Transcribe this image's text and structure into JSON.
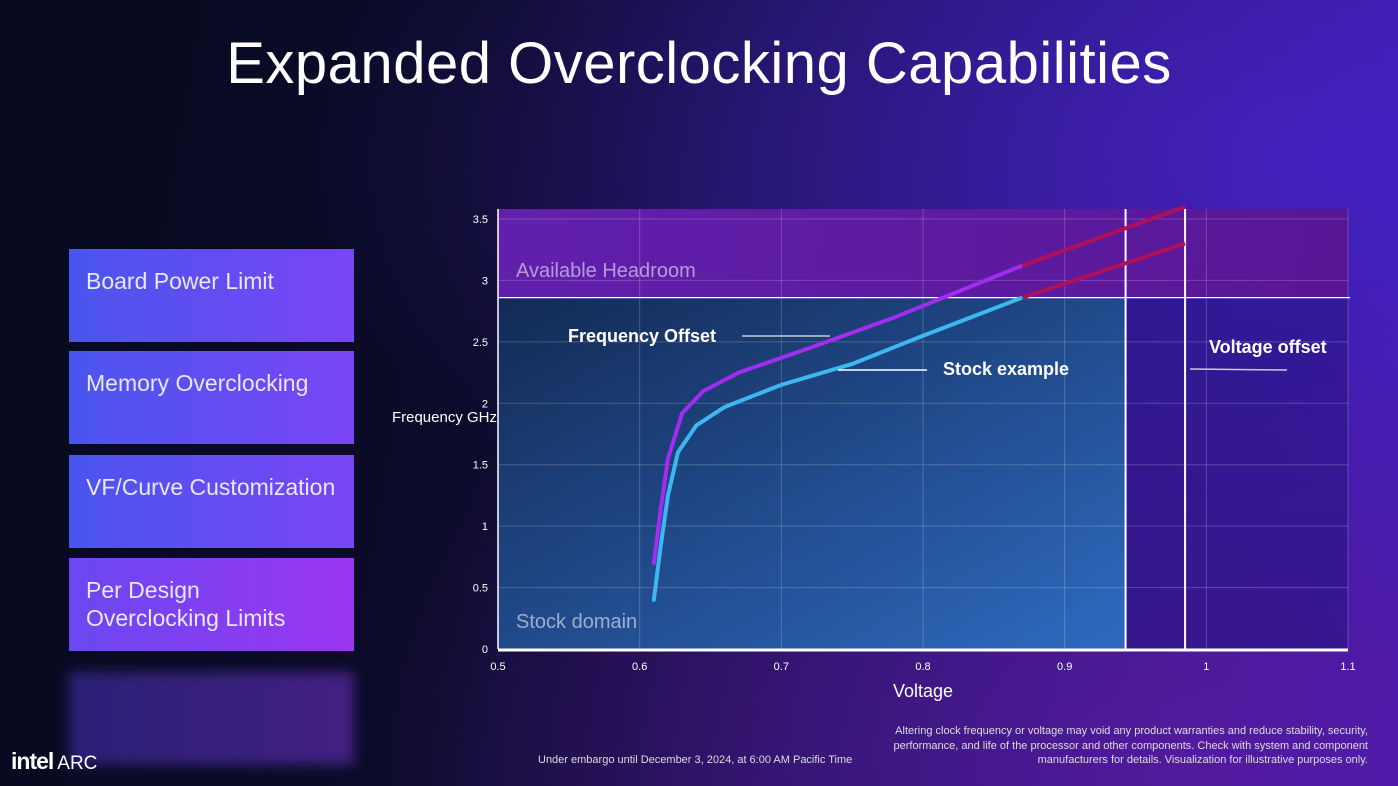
{
  "title": "Expanded Overclocking Capabilities",
  "features": [
    "Board Power Limit",
    "Memory Overclocking",
    "VF/Curve Customization",
    "Per Design Overclocking Limits"
  ],
  "footer": {
    "logo": "intel",
    "logo_sub": "ARC",
    "embargo": "Under embargo until December 3, 2024, at 6:00 AM Pacific Time",
    "disclaimer": "Altering clock frequency or voltage may void any product warranties and reduce stability, security, performance, and life of the processor and other components.  Check with system and component manufacturers for details. Visualization for illustrative purposes only."
  },
  "chart_data": {
    "type": "line",
    "title": "",
    "xlabel": "Voltage",
    "ylabel": "Frequency GHz",
    "xlim": [
      0.5,
      1.1
    ],
    "ylim": [
      0,
      3.5
    ],
    "xticks": [
      "0.5",
      "0.6",
      "0.7",
      "0.8",
      "0.9",
      "1",
      "1.1"
    ],
    "yticks": [
      "0",
      "0.5",
      "1",
      "1.5",
      "2",
      "2.5",
      "3",
      "3.5"
    ],
    "regions": {
      "stock_domain": {
        "label": "Stock domain",
        "vmax": 0.943,
        "fmax": 2.86
      },
      "available_headroom": {
        "label": "Available Headroom",
        "fmin": 2.86
      }
    },
    "voltage_lines": [
      0.943,
      0.985
    ],
    "series": [
      {
        "name": "Stock example",
        "color": "#3cb8f0",
        "points": [
          [
            0.61,
            0.4
          ],
          [
            0.615,
            0.85
          ],
          [
            0.62,
            1.25
          ],
          [
            0.627,
            1.6
          ],
          [
            0.64,
            1.82
          ],
          [
            0.66,
            1.97
          ],
          [
            0.7,
            2.15
          ],
          [
            0.75,
            2.32
          ],
          [
            0.8,
            2.55
          ],
          [
            0.87,
            2.86
          ]
        ],
        "extension": [
          [
            0.87,
            2.86
          ],
          [
            0.985,
            3.3
          ]
        ]
      },
      {
        "name": "Frequency Offset",
        "color": "#a22cf0",
        "points": [
          [
            0.61,
            0.7
          ],
          [
            0.615,
            1.15
          ],
          [
            0.62,
            1.55
          ],
          [
            0.63,
            1.92
          ],
          [
            0.645,
            2.1
          ],
          [
            0.67,
            2.25
          ],
          [
            0.72,
            2.45
          ],
          [
            0.78,
            2.7
          ],
          [
            0.87,
            3.12
          ]
        ],
        "extension": [
          [
            0.87,
            3.12
          ],
          [
            0.985,
            3.6
          ]
        ]
      }
    ],
    "extension_color": "#b0105a",
    "annotations": [
      "Frequency Offset",
      "Stock example",
      "Voltage offset"
    ]
  }
}
